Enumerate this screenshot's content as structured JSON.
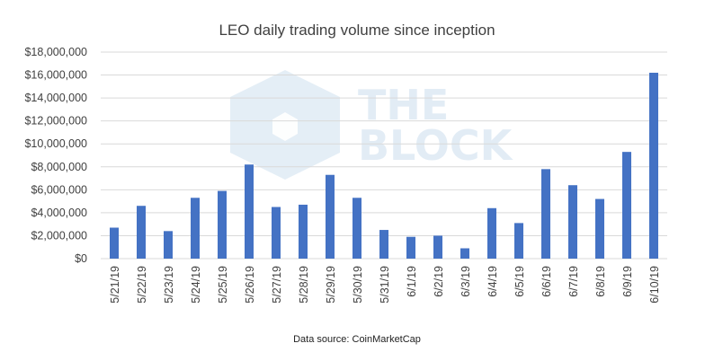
{
  "chart_data": {
    "type": "bar",
    "title": "LEO daily trading volume since inception",
    "source": "Data source: CoinMarketCap",
    "categories": [
      "5/21/19",
      "5/22/19",
      "5/23/19",
      "5/24/19",
      "5/25/19",
      "5/26/19",
      "5/27/19",
      "5/28/19",
      "5/29/19",
      "5/30/19",
      "5/31/19",
      "6/1/19",
      "6/2/19",
      "6/3/19",
      "6/4/19",
      "6/5/19",
      "6/6/19",
      "6/7/19",
      "6/8/19",
      "6/9/19",
      "6/10/19"
    ],
    "values": [
      2700000,
      4600000,
      2400000,
      5300000,
      5900000,
      8200000,
      4500000,
      4700000,
      7300000,
      5300000,
      2500000,
      1900000,
      2000000,
      900000,
      4400000,
      3100000,
      7800000,
      6400000,
      5200000,
      9300000,
      16200000
    ],
    "ylim": [
      0,
      18000000
    ],
    "yticks": [
      0,
      2000000,
      4000000,
      6000000,
      8000000,
      10000000,
      12000000,
      14000000,
      16000000,
      18000000
    ],
    "ytick_labels": [
      "$0",
      "$2,000,000",
      "$4,000,000",
      "$6,000,000",
      "$8,000,000",
      "$10,000,000",
      "$12,000,000",
      "$14,000,000",
      "$16,000,000",
      "$18,000,000"
    ],
    "grid": true,
    "bar_color": "#4472c4",
    "grid_color": "#d9d9d9",
    "watermark": "THE BLOCK",
    "watermark_color": "#dbe8f3"
  }
}
